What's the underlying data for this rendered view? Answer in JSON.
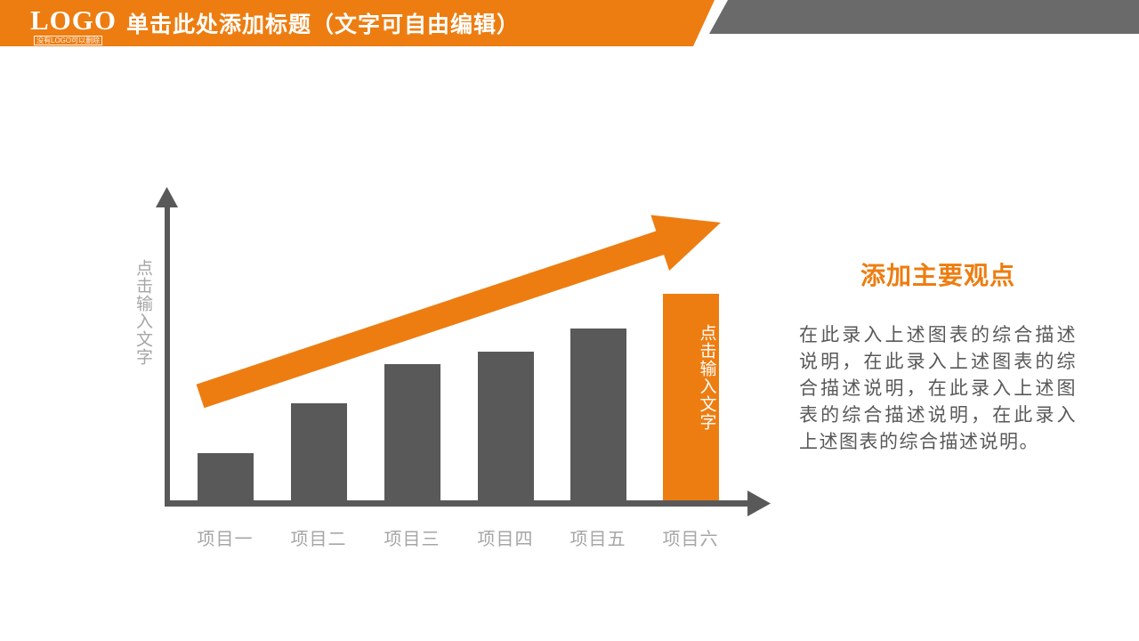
{
  "header": {
    "logo": "LOGO",
    "logo_sub": "没有LOGO可以删除",
    "title": "单击此处添加标题（文字可自由编辑）"
  },
  "colors": {
    "accent": "#ED7D11",
    "bar": "#595959",
    "axis": "#595959",
    "label": "#A6A6A6",
    "band": "#6A6A6A",
    "body": "#595959"
  },
  "chart_data": {
    "type": "bar",
    "categories": [
      "项目一",
      "项目二",
      "项目三",
      "项目四",
      "项目五",
      "项目六"
    ],
    "values": [
      23,
      47,
      66,
      72,
      83,
      100
    ],
    "ylim": [
      0,
      100
    ],
    "y_axis_label": "点击输入文字",
    "highlight_index": 5,
    "highlight_bar_label": "点击输入文字",
    "highlight_color": "#ED7D11",
    "bar_color": "#595959",
    "trend_arrow": "rising",
    "grid": false,
    "legend": false,
    "title": ""
  },
  "panel": {
    "heading": "添加主要观点",
    "body_text": "在此录入上述图表的综合描述说明，在此录入上述图表的综合描述说明，在此录入上述图表的综合描述说明，在此录入上述图表的综合描述说明。",
    "body_lines": [
      "在此录入上述图表的综合描述",
      "说明，在此录入上述图表的综",
      "合描述说明，在此录入上述图",
      "表的综合描述说明，在此录入",
      "上述图表的综合描述说明。"
    ]
  }
}
